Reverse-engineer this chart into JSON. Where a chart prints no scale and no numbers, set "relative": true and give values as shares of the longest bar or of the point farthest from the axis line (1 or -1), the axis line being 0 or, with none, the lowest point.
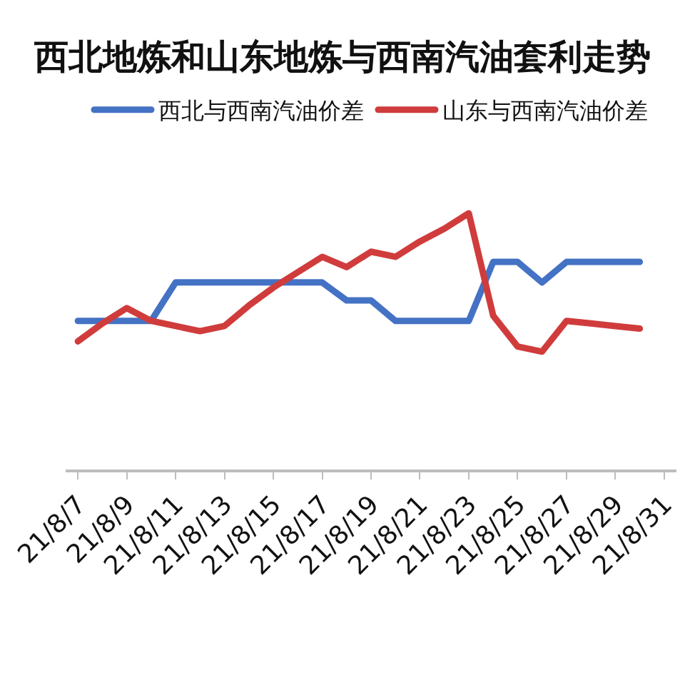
{
  "chart_data": {
    "type": "line",
    "title": "西北地炼和山东地炼与西南汽油套利走势",
    "categories": [
      "21/8/7",
      null,
      "21/8/9",
      null,
      "21/8/11",
      null,
      "21/8/13",
      null,
      "21/8/15",
      null,
      "21/8/17",
      null,
      "21/8/19",
      null,
      "21/8/21",
      null,
      "21/8/23",
      null,
      "21/8/25",
      null,
      "21/8/27",
      null,
      "21/8/29",
      null,
      "21/8/31"
    ],
    "series": [
      {
        "name": "西北与西南汽油价差",
        "color": "#4472c4",
        "values": [
          0.58,
          0.58,
          0.58,
          0.58,
          0.73,
          0.73,
          0.73,
          0.73,
          0.73,
          0.73,
          0.73,
          0.66,
          0.66,
          0.58,
          0.58,
          0.58,
          0.58,
          0.81,
          0.81,
          0.73,
          0.81,
          0.81,
          0.81,
          0.81,
          null
        ]
      },
      {
        "name": "山东与西南汽油价差",
        "color": "#d03c3c",
        "values": [
          0.5,
          0.57,
          0.63,
          0.58,
          0.56,
          0.54,
          0.56,
          0.64,
          0.71,
          0.77,
          0.83,
          0.79,
          0.85,
          0.83,
          0.89,
          0.94,
          1.0,
          0.6,
          0.48,
          0.46,
          0.58,
          0.57,
          0.56,
          0.55,
          null
        ]
      }
    ],
    "relative": true,
    "legend": "top"
  }
}
